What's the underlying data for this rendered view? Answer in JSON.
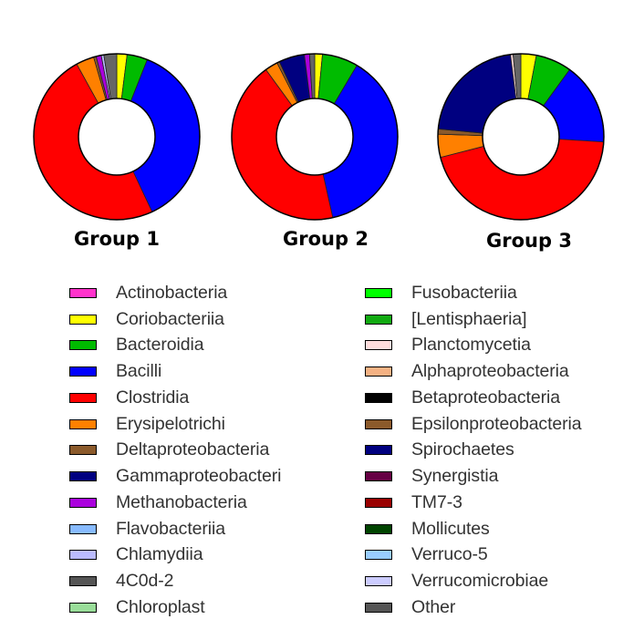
{
  "chart_data": [
    {
      "type": "pie",
      "title": "Group 1",
      "slices": [
        {
          "label": "Coriobacteriia",
          "value": 2
        },
        {
          "label": "Bacteroidia",
          "value": 4
        },
        {
          "label": "Bacilli",
          "value": 37
        },
        {
          "label": "Clostridia",
          "value": 49
        },
        {
          "label": "Erysipelotrichi",
          "value": 3.5
        },
        {
          "label": "Deltaproteobacteria",
          "value": 0.5
        },
        {
          "label": "Methanobacteria",
          "value": 1
        },
        {
          "label": "Chlamydiia",
          "value": 0.5
        },
        {
          "label": "Other",
          "value": 2.5
        }
      ]
    },
    {
      "type": "pie",
      "title": "Group 2",
      "slices": [
        {
          "label": "Coriobacteriia",
          "value": 1.5
        },
        {
          "label": "Bacteroidia",
          "value": 7
        },
        {
          "label": "Bacilli",
          "value": 38
        },
        {
          "label": "Clostridia",
          "value": 43.5
        },
        {
          "label": "Erysipelotrichi",
          "value": 2.5
        },
        {
          "label": "Deltaproteobacteria",
          "value": 0.5
        },
        {
          "label": "Gammaproteobacteria",
          "value": 5
        },
        {
          "label": "Methanobacteria",
          "value": 1
        },
        {
          "label": "Other",
          "value": 1
        }
      ]
    },
    {
      "type": "pie",
      "title": "Group 3",
      "slices": [
        {
          "label": "Coriobacteriia",
          "value": 3
        },
        {
          "label": "Bacteroidia",
          "value": 7
        },
        {
          "label": "Bacilli",
          "value": 16
        },
        {
          "label": "Clostridia",
          "value": 45
        },
        {
          "label": "Erysipelotrichi",
          "value": 4.5
        },
        {
          "label": "Deltaproteobacteria",
          "value": 1
        },
        {
          "label": "Spirochaetes",
          "value": 21.5
        },
        {
          "label": "Planctomycetia",
          "value": 0.5
        },
        {
          "label": "Other",
          "value": 1.5
        }
      ]
    }
  ],
  "legend": {
    "placement": "bottom",
    "items": [
      {
        "label": "Actinobacteria",
        "color": "#ff33cc"
      },
      {
        "label": "Coriobacteriia",
        "color": "#ffff00"
      },
      {
        "label": "Bacteroidia",
        "color": "#00bb00"
      },
      {
        "label": "Bacilli",
        "color": "#0000ff"
      },
      {
        "label": "Clostridia",
        "color": "#ff0000"
      },
      {
        "label": "Erysipelotrichi",
        "color": "#ff8000"
      },
      {
        "label": "Deltaproteobacteria",
        "color": "#8b5a2b"
      },
      {
        "label": "Gammaproteobacteri",
        "color": "#000080"
      },
      {
        "label": "Methanobacteria",
        "color": "#aa00dd"
      },
      {
        "label": "Flavobacteriia",
        "color": "#88bbff"
      },
      {
        "label": "Chlamydiia",
        "color": "#bbbbff"
      },
      {
        "label": "4C0d-2",
        "color": "#555555"
      },
      {
        "label": "Chloroplast",
        "color": "#99dd99"
      },
      {
        "label": "Fusobacteriia",
        "color": "#00ff00"
      },
      {
        "label": "[Lentisphaeria]",
        "color": "#11aa11"
      },
      {
        "label": "Planctomycetia",
        "color": "#ffdddd"
      },
      {
        "label": "Alphaproteobacteria",
        "color": "#f4b183"
      },
      {
        "label": "Betaproteobacteria",
        "color": "#000000"
      },
      {
        "label": "Epsilonproteobacteria",
        "color": "#8b5a2b"
      },
      {
        "label": "Spirochaetes",
        "color": "#000080"
      },
      {
        "label": "Synergistia",
        "color": "#660044"
      },
      {
        "label": "TM7-3",
        "color": "#990000"
      },
      {
        "label": "Mollicutes",
        "color": "#004400"
      },
      {
        "label": "Verruco-5",
        "color": "#99ccff"
      },
      {
        "label": "Verrucomicrobiae",
        "color": "#ccccff"
      },
      {
        "label": "Other",
        "color": "#555555"
      }
    ]
  },
  "slice_colors": {
    "Coriobacteriia": "#ffff00",
    "Bacteroidia": "#00bb00",
    "Bacilli": "#0000ff",
    "Clostridia": "#ff0000",
    "Erysipelotrichi": "#ff8000",
    "Deltaproteobacteria": "#8b5a2b",
    "Gammaproteobacteria": "#000080",
    "Spirochaetes": "#000080",
    "Methanobacteria": "#aa00dd",
    "Chlamydiia": "#bbbbff",
    "Planctomycetia": "#ffdddd",
    "Other": "#666666"
  }
}
